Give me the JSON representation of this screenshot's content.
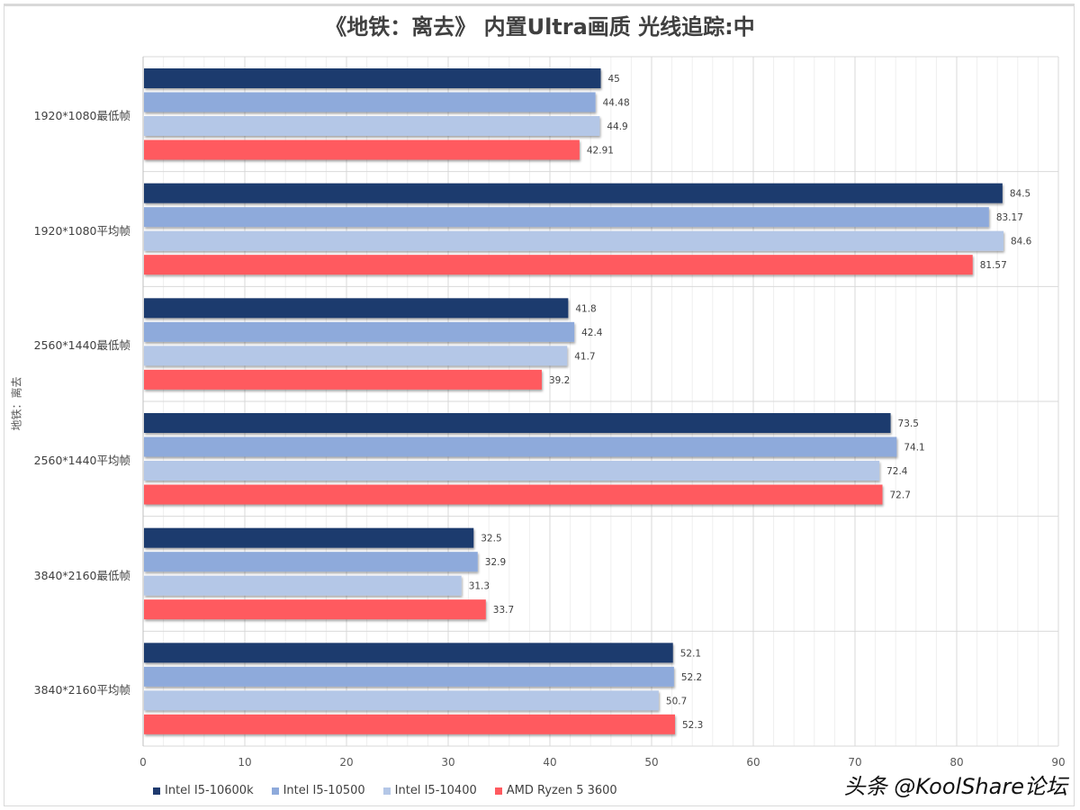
{
  "chart_data": {
    "type": "bar",
    "orientation": "horizontal",
    "title": "《地铁：离去》 内置Ultra画质 光线追踪:中",
    "ylabel": "地铁：离去",
    "xlabel": "",
    "categories": [
      "1920*1080最低帧",
      "1920*1080平均帧",
      "2560*1440最低帧",
      "2560*1440平均帧",
      "3840*2160最低帧",
      "3840*2160平均帧"
    ],
    "xlim": [
      0,
      90
    ],
    "xticks": [
      "0",
      "10",
      "20",
      "30",
      "40",
      "50",
      "60",
      "70",
      "80",
      "90"
    ],
    "grid": true,
    "legend_position": "bottom",
    "series": [
      {
        "name": "Intel I5-10600k",
        "color": "#1f3a6e",
        "values": [
          45,
          84.5,
          41.8,
          73.5,
          32.5,
          52.1
        ],
        "labels": [
          "45",
          "84.5",
          "41.8",
          "73.5",
          "32.5",
          "52.1"
        ]
      },
      {
        "name": "Intel I5-10500",
        "color": "#8eaadb",
        "values": [
          44.48,
          83.17,
          42.4,
          74.1,
          32.9,
          52.2
        ],
        "labels": [
          "44.48",
          "83.17",
          "42.4",
          "74.1",
          "32.9",
          "52.2"
        ]
      },
      {
        "name": "Intel I5-10400",
        "color": "#b4c7e7",
        "values": [
          44.9,
          84.6,
          41.7,
          72.4,
          31.3,
          50.7
        ],
        "labels": [
          "44.9",
          "84.6",
          "41.7",
          "72.4",
          "31.3",
          "50.7"
        ]
      },
      {
        "name": "AMD Ryzen 5 3600",
        "color": "#ff5a5f",
        "values": [
          42.91,
          81.57,
          39.2,
          72.7,
          33.7,
          52.3
        ],
        "labels": [
          "42.91",
          "81.57",
          "39.2",
          "72.7",
          "33.7",
          "52.3"
        ]
      }
    ]
  },
  "watermark": "头条 @KoolShare论坛"
}
